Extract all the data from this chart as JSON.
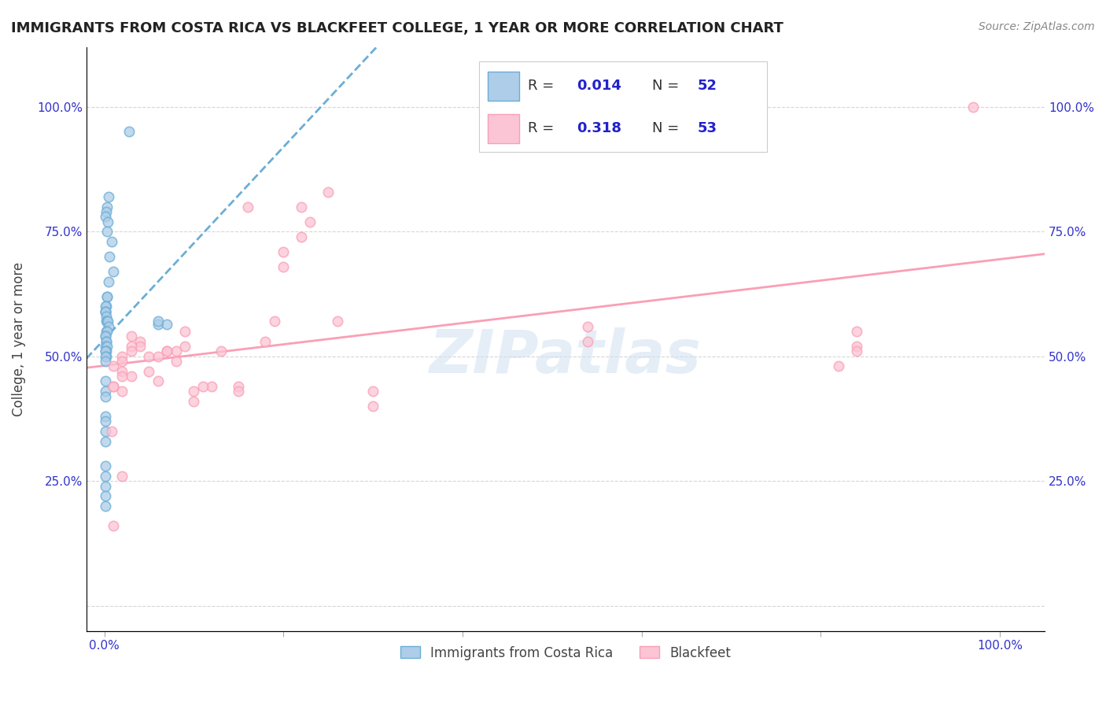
{
  "title": "IMMIGRANTS FROM COSTA RICA VS BLACKFEET COLLEGE, 1 YEAR OR MORE CORRELATION CHART",
  "source": "Source: ZipAtlas.com",
  "ylabel": "College, 1 year or more",
  "x_tick_positions": [
    0.0,
    0.2,
    0.4,
    0.6,
    0.8,
    1.0
  ],
  "x_tick_labels": [
    "0.0%",
    "",
    "",
    "",
    "",
    "100.0%"
  ],
  "y_tick_positions": [
    0.0,
    0.25,
    0.5,
    0.75,
    1.0
  ],
  "y_tick_labels_left": [
    "",
    "25.0%",
    "50.0%",
    "75.0%",
    "100.0%"
  ],
  "y_tick_labels_right": [
    "",
    "25.0%",
    "50.0%",
    "75.0%",
    "100.0%"
  ],
  "xlim": [
    -0.02,
    1.05
  ],
  "ylim": [
    -0.05,
    1.12
  ],
  "blue_face_color": "#aecde8",
  "blue_edge_color": "#6baed6",
  "pink_face_color": "#fcc5d5",
  "pink_edge_color": "#fa9fb5",
  "trendline_blue_color": "#6baed6",
  "trendline_pink_color": "#fa9fb5",
  "watermark": "ZIPatlas",
  "legend_r1": "0.014",
  "legend_n1": "52",
  "legend_r2": "0.318",
  "legend_n2": "53",
  "blue_scatter_x": [
    0.028,
    0.005,
    0.003,
    0.002,
    0.001,
    0.004,
    0.003,
    0.008,
    0.006,
    0.01,
    0.005,
    0.003,
    0.003,
    0.002,
    0.001,
    0.001,
    0.001,
    0.001,
    0.002,
    0.002,
    0.003,
    0.004,
    0.005,
    0.002,
    0.003,
    0.001,
    0.001,
    0.002,
    0.002,
    0.001,
    0.003,
    0.002,
    0.001,
    0.001,
    0.002,
    0.001,
    0.001,
    0.06,
    0.06,
    0.07,
    0.001,
    0.001,
    0.001,
    0.001,
    0.001,
    0.001,
    0.001,
    0.001,
    0.001,
    0.001,
    0.001,
    0.001
  ],
  "blue_scatter_y": [
    0.95,
    0.82,
    0.8,
    0.79,
    0.78,
    0.77,
    0.75,
    0.73,
    0.7,
    0.67,
    0.65,
    0.62,
    0.62,
    0.6,
    0.6,
    0.59,
    0.59,
    0.59,
    0.58,
    0.57,
    0.57,
    0.57,
    0.56,
    0.55,
    0.55,
    0.54,
    0.54,
    0.53,
    0.53,
    0.52,
    0.52,
    0.51,
    0.51,
    0.51,
    0.5,
    0.5,
    0.49,
    0.565,
    0.57,
    0.565,
    0.45,
    0.43,
    0.42,
    0.38,
    0.37,
    0.35,
    0.33,
    0.28,
    0.26,
    0.24,
    0.22,
    0.2
  ],
  "pink_scatter_x": [
    0.97,
    0.84,
    0.84,
    0.84,
    0.82,
    0.54,
    0.54,
    0.3,
    0.3,
    0.26,
    0.25,
    0.23,
    0.22,
    0.22,
    0.2,
    0.2,
    0.19,
    0.18,
    0.16,
    0.15,
    0.15,
    0.13,
    0.12,
    0.11,
    0.1,
    0.1,
    0.09,
    0.09,
    0.08,
    0.08,
    0.07,
    0.07,
    0.06,
    0.06,
    0.05,
    0.05,
    0.04,
    0.04,
    0.03,
    0.03,
    0.03,
    0.03,
    0.02,
    0.02,
    0.02,
    0.02,
    0.02,
    0.02,
    0.01,
    0.01,
    0.01,
    0.01,
    0.008
  ],
  "pink_scatter_y": [
    1.0,
    0.55,
    0.52,
    0.51,
    0.48,
    0.56,
    0.53,
    0.43,
    0.4,
    0.57,
    0.83,
    0.77,
    0.8,
    0.74,
    0.71,
    0.68,
    0.57,
    0.53,
    0.8,
    0.44,
    0.43,
    0.51,
    0.44,
    0.44,
    0.43,
    0.41,
    0.55,
    0.52,
    0.51,
    0.49,
    0.51,
    0.51,
    0.5,
    0.45,
    0.5,
    0.47,
    0.53,
    0.52,
    0.54,
    0.52,
    0.51,
    0.46,
    0.26,
    0.5,
    0.49,
    0.47,
    0.46,
    0.43,
    0.48,
    0.44,
    0.44,
    0.16,
    0.35
  ],
  "bottom_legend_labels": [
    "Immigrants from Costa Rica",
    "Blackfeet"
  ]
}
